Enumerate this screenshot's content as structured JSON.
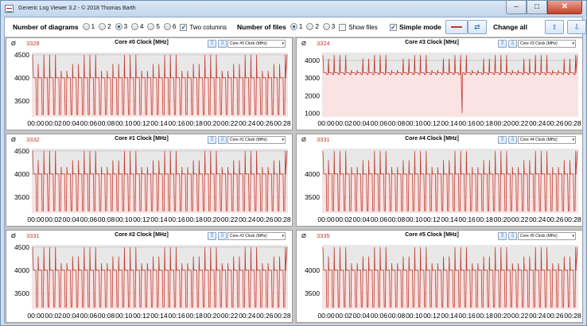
{
  "window": {
    "title": "Generic Log Viewer 3.2 - © 2018 Thomas Barth",
    "min_label": "–",
    "max_label": "□",
    "close_label": "✕"
  },
  "toolbar": {
    "diagrams_label": "Number of diagrams",
    "diagram_options": [
      "1",
      "2",
      "3",
      "4",
      "5",
      "6"
    ],
    "diagrams_selected": "3",
    "two_columns_label": "Two columns",
    "two_columns_checked": true,
    "files_label": "Number of files",
    "file_options": [
      "1",
      "2",
      "3"
    ],
    "files_selected": "1",
    "show_files_label": "Show files",
    "show_files_checked": false,
    "simple_mode_label": "Simple mode",
    "simple_mode_checked": true,
    "change_all_label": "Change all",
    "icons": {
      "swap": "swap-arrows-icon",
      "up": "arrow-up-icon",
      "down": "arrow-down-icon",
      "line": "line-color-icon"
    }
  },
  "colors": {
    "series": "#c0392b",
    "fill": "#fbe3e3",
    "plot_bg": "#e8e8e8",
    "grid": "#bfbfbf",
    "avg": "#c0392b"
  },
  "panels": [
    {
      "avg_symbol": "Ø",
      "avg": "3328",
      "title": "Core #0 Clock [MHz]",
      "select": "Core #0 Clock (MHz)"
    },
    {
      "avg_symbol": "Ø",
      "avg": "3324",
      "title": "Core #3 Clock [MHz]",
      "select": "Core #3 Clock (MHz)"
    },
    {
      "avg_symbol": "Ø",
      "avg": "3332",
      "title": "Core #1 Clock [MHz]",
      "select": "Core #1 Clock (MHz)"
    },
    {
      "avg_symbol": "Ø",
      "avg": "3331",
      "title": "Core #4 Clock [MHz]",
      "select": "Core #4 Clock (MHz)"
    },
    {
      "avg_symbol": "Ø",
      "avg": "3331",
      "title": "Core #2 Clock [MHz]",
      "select": "Core #2 Clock (MHz)"
    },
    {
      "avg_symbol": "Ø",
      "avg": "3335",
      "title": "Core #5 Clock [MHz]",
      "select": "Core #5 Clock (MHz)"
    }
  ],
  "chart_data": [
    {
      "type": "line",
      "title": "Core #0 Clock [MHz]",
      "ylim": [
        3150,
        4550
      ],
      "yticks": [
        "3500",
        "4000",
        "4500"
      ],
      "base": 4000,
      "low": 3200,
      "spike": 4300,
      "spike_hi": 4500,
      "x": [
        "00:00",
        "00:02",
        "00:04",
        "00:06",
        "00:08",
        "00:10",
        "00:12",
        "00:14",
        "00:16",
        "00:18",
        "00:20",
        "00:22",
        "00:24",
        "00:26",
        "00:28"
      ]
    },
    {
      "type": "line",
      "title": "Core #3 Clock [MHz]",
      "ylim": [
        800,
        4450
      ],
      "yticks": [
        "1000",
        "2000",
        "3000",
        "4000"
      ],
      "base": 3300,
      "low": 3200,
      "spike": 4100,
      "spike_hi": 4300,
      "dip": {
        "x": "00:14",
        "y": 1000
      },
      "x": [
        "00:00",
        "00:02",
        "00:04",
        "00:06",
        "00:08",
        "00:10",
        "00:12",
        "00:14",
        "00:16",
        "00:18",
        "00:20",
        "00:22",
        "00:24",
        "00:26",
        "00:28"
      ]
    },
    {
      "type": "line",
      "title": "Core #1 Clock [MHz]",
      "ylim": [
        3150,
        4550
      ],
      "yticks": [
        "3500",
        "4000",
        "4500"
      ],
      "base": 4000,
      "low": 3200,
      "spike": 4300,
      "spike_hi": 4500,
      "x": [
        "00:00",
        "00:02",
        "00:04",
        "00:06",
        "00:08",
        "00:10",
        "00:12",
        "00:14",
        "00:16",
        "00:18",
        "00:20",
        "00:22",
        "00:24",
        "00:26",
        "00:28"
      ]
    },
    {
      "type": "line",
      "title": "Core #4 Clock [MHz]",
      "ylim": [
        3150,
        4550
      ],
      "yticks": [
        "3500",
        "4000"
      ],
      "base": 4000,
      "low": 3200,
      "spike": 4300,
      "spike_hi": 4500,
      "x": [
        "00:00",
        "00:02",
        "00:04",
        "00:06",
        "00:08",
        "00:10",
        "00:12",
        "00:14",
        "00:16",
        "00:18",
        "00:20",
        "00:22",
        "00:24",
        "00:26",
        "00:28"
      ]
    },
    {
      "type": "line",
      "title": "Core #2 Clock [MHz]",
      "ylim": [
        3150,
        4550
      ],
      "yticks": [
        "3500",
        "4000",
        "4500"
      ],
      "base": 4000,
      "low": 3200,
      "spike": 4300,
      "spike_hi": 4500,
      "x": [
        "00:00",
        "00:02",
        "00:04",
        "00:06",
        "00:08",
        "00:10",
        "00:12",
        "00:14",
        "00:16",
        "00:18",
        "00:20",
        "00:22",
        "00:24",
        "00:26",
        "00:28"
      ]
    },
    {
      "type": "line",
      "title": "Core #5 Clock [MHz]",
      "ylim": [
        3150,
        4550
      ],
      "yticks": [
        "3500",
        "4000"
      ],
      "base": 4000,
      "low": 3200,
      "spike": 4300,
      "spike_hi": 4500,
      "x": [
        "00:00",
        "00:02",
        "00:04",
        "00:06",
        "00:08",
        "00:10",
        "00:12",
        "00:14",
        "00:16",
        "00:18",
        "00:20",
        "00:22",
        "00:24",
        "00:26",
        "00:28"
      ]
    }
  ]
}
